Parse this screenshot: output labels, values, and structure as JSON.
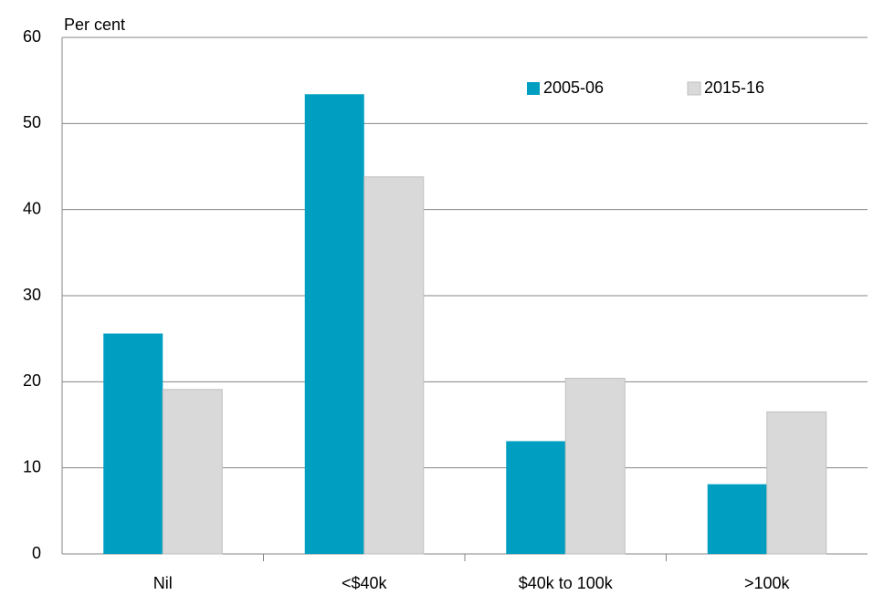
{
  "chart_data": {
    "type": "bar",
    "y_label": "Per cent",
    "categories": [
      "Nil",
      "<$40k",
      "$40k to 100k",
      ">100k"
    ],
    "series": [
      {
        "name": "2005-06",
        "color": "#009fc2",
        "values": [
          25.6,
          53.4,
          13.1,
          8.1
        ]
      },
      {
        "name": "2015-16",
        "color": "#d9d9d9",
        "values": [
          19.1,
          43.8,
          20.4,
          16.5
        ]
      }
    ],
    "ylim": [
      0,
      60
    ],
    "yticks": [
      0,
      10,
      20,
      30,
      40,
      50,
      60
    ],
    "grid": true,
    "legend": "top-right"
  }
}
